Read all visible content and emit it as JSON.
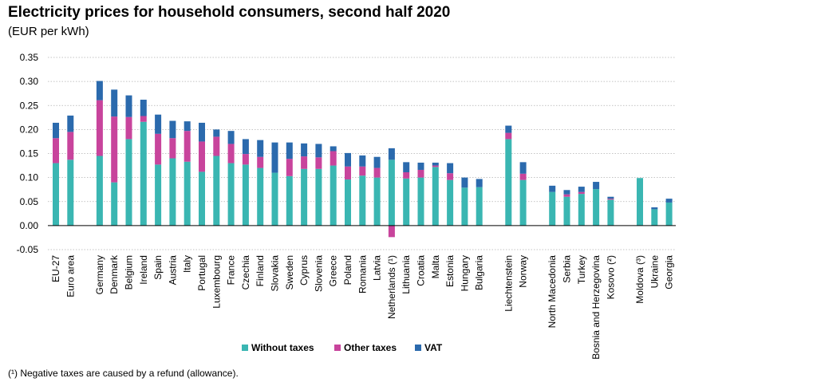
{
  "title": "Electricity prices for household consumers, second half 2020",
  "subtitle": "(EUR per kWh)",
  "footnote": "(¹) Negative taxes are caused by a refund (allowance).",
  "colors": {
    "without_taxes": "#3ab6b2",
    "other_taxes": "#c8449c",
    "vat": "#2b6aad",
    "grid": "#b0b0b0",
    "axis": "#000000"
  },
  "chart_data": {
    "type": "bar",
    "stacked": true,
    "title": "Electricity prices for household consumers, second half 2020",
    "ylabel": "(EUR per kWh)",
    "ylim": [
      -0.05,
      0.35
    ],
    "yticks": [
      "-0.05",
      "0.00",
      "0.05",
      "0.10",
      "0.15",
      "0.20",
      "0.25",
      "0.30",
      "0.35"
    ],
    "grid": true,
    "legend_position": "bottom",
    "categories": [
      "EU-27",
      "Euro area",
      "Germany",
      "Denmark",
      "Belgium",
      "Ireland",
      "Spain",
      "Austria",
      "Italy",
      "Portugal",
      "Luxembourg",
      "France",
      "Czechia",
      "Finland",
      "Slovakia",
      "Sweden",
      "Cyprus",
      "Slovenia",
      "Greece",
      "Poland",
      "Romania",
      "Latvia",
      "Netherlands (¹)",
      "Lithuania",
      "Croatia",
      "Malta",
      "Estonia",
      "Hungary",
      "Bulgaria",
      "Liechtenstein",
      "Norway",
      "North Macedonia",
      "Serbia",
      "Turkey",
      "Bosnia and Herzegovina",
      "Kosovo (²)",
      "Moldova (³)",
      "Ukraine",
      "Georgia"
    ],
    "groups": [
      2,
      27,
      2,
      5,
      3
    ],
    "series": [
      {
        "name": "Without taxes",
        "values": [
          0.13,
          0.137,
          0.145,
          0.09,
          0.18,
          0.216,
          0.127,
          0.14,
          0.133,
          0.112,
          0.145,
          0.13,
          0.127,
          0.12,
          0.11,
          0.103,
          0.118,
          0.118,
          0.125,
          0.096,
          0.104,
          0.1,
          0.137,
          0.098,
          0.1,
          0.122,
          0.095,
          0.079,
          0.08,
          0.18,
          0.095,
          0.07,
          0.06,
          0.066,
          0.076,
          0.054,
          0.099,
          0.034,
          0.048
        ]
      },
      {
        "name": "Other taxes",
        "values": [
          0.052,
          0.058,
          0.116,
          0.137,
          0.046,
          0.012,
          0.064,
          0.042,
          0.064,
          0.063,
          0.04,
          0.04,
          0.022,
          0.023,
          0.0,
          0.036,
          0.026,
          0.024,
          0.03,
          0.027,
          0.019,
          0.02,
          -0.024,
          0.013,
          0.016,
          0.003,
          0.014,
          0.0,
          0.0,
          0.013,
          0.013,
          0.0,
          0.005,
          0.004,
          0.0,
          0.002,
          0.0,
          0.0,
          0.0
        ]
      },
      {
        "name": "VAT",
        "values": [
          0.032,
          0.034,
          0.04,
          0.056,
          0.045,
          0.034,
          0.04,
          0.036,
          0.02,
          0.039,
          0.015,
          0.027,
          0.031,
          0.035,
          0.063,
          0.034,
          0.027,
          0.028,
          0.01,
          0.028,
          0.023,
          0.023,
          0.024,
          0.021,
          0.015,
          0.006,
          0.021,
          0.021,
          0.017,
          0.015,
          0.024,
          0.013,
          0.009,
          0.011,
          0.015,
          0.004,
          0.0,
          0.004,
          0.008
        ]
      }
    ]
  }
}
